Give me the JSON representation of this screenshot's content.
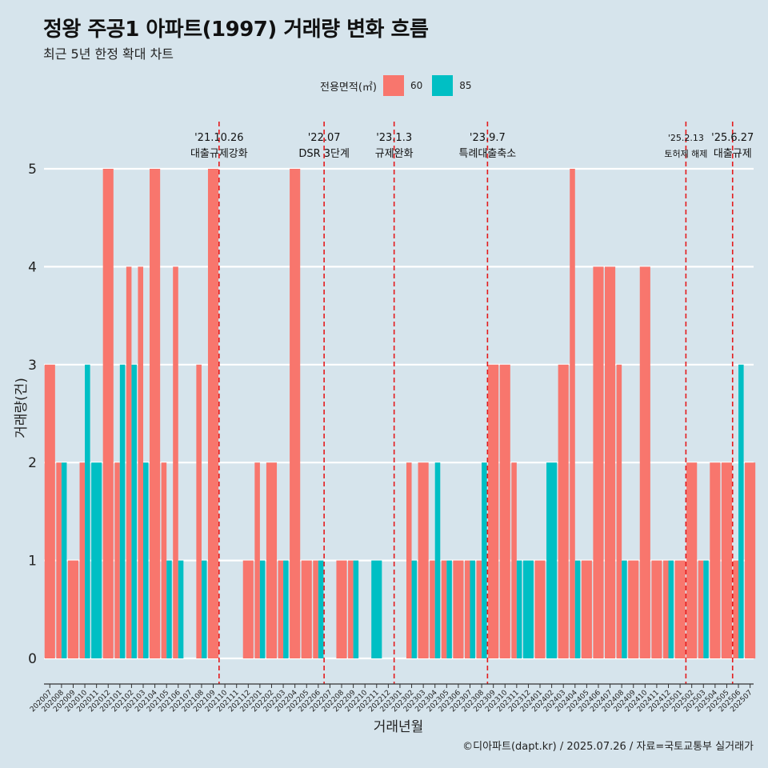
{
  "title": "정왕 주공1 아파트(1997) 거래량 변화 흐름",
  "subtitle": "최근 5년 한정 확대 차트",
  "caption": "©디아파트(dapt.kr) / 2025.07.26 / 자료=국토교통부 실거래가",
  "legend": {
    "title": "전용면적(㎡)",
    "items": [
      {
        "label": "60",
        "color": "#f8766d"
      },
      {
        "label": "85",
        "color": "#00bfc4"
      }
    ]
  },
  "chart_data": {
    "type": "bar",
    "title": "정왕 주공1 아파트(1997) 거래량 변화 흐름",
    "xlabel": "거래년월",
    "ylabel": "거래량(건)",
    "ylim": [
      0,
      5
    ],
    "yticks": [
      0,
      1,
      2,
      3,
      4,
      5
    ],
    "categories": [
      "202007",
      "202008",
      "202009",
      "202010",
      "202011",
      "202012",
      "202101",
      "202102",
      "202103",
      "202104",
      "202105",
      "202106",
      "202107",
      "202108",
      "202109",
      "202110",
      "202111",
      "202112",
      "202201",
      "202202",
      "202203",
      "202204",
      "202205",
      "202206",
      "202207",
      "202208",
      "202209",
      "202210",
      "202211",
      "202212",
      "202301",
      "202302",
      "202303",
      "202304",
      "202305",
      "202306",
      "202307",
      "202308",
      "202309",
      "202310",
      "202311",
      "202312",
      "202401",
      "202402",
      "202403",
      "202404",
      "202405",
      "202406",
      "202407",
      "202408",
      "202409",
      "202410",
      "202411",
      "202412",
      "202501",
      "202502",
      "202503",
      "202504",
      "202505",
      "202506",
      "202507"
    ],
    "series": [
      {
        "name": "60",
        "color": "#f8766d",
        "values": [
          3,
          2,
          1,
          2,
          null,
          5,
          2,
          4,
          4,
          5,
          2,
          4,
          null,
          3,
          5,
          null,
          null,
          1,
          2,
          2,
          1,
          5,
          1,
          1,
          null,
          1,
          1,
          null,
          null,
          null,
          null,
          2,
          2,
          1,
          1,
          1,
          1,
          1,
          3,
          3,
          2,
          null,
          1,
          null,
          3,
          5,
          1,
          4,
          4,
          3,
          1,
          4,
          1,
          1,
          1,
          2,
          1,
          2,
          2,
          1,
          2
        ]
      },
      {
        "name": "85",
        "color": "#00bfc4",
        "values": [
          null,
          2,
          null,
          3,
          2,
          null,
          3,
          3,
          2,
          null,
          1,
          1,
          null,
          1,
          null,
          null,
          null,
          null,
          1,
          null,
          1,
          null,
          null,
          1,
          null,
          null,
          1,
          null,
          1,
          null,
          null,
          1,
          null,
          2,
          1,
          null,
          1,
          2,
          null,
          null,
          1,
          1,
          null,
          2,
          null,
          1,
          null,
          null,
          null,
          1,
          null,
          null,
          null,
          1,
          null,
          null,
          1,
          null,
          null,
          3,
          null
        ]
      }
    ],
    "events": [
      {
        "date": "'21.10.26",
        "label": "대출규제강화",
        "month": "202110"
      },
      {
        "date": "'22.07",
        "label": "DSR 3단계",
        "month": "202207"
      },
      {
        "date": "'23.1.3",
        "label": "규제완화",
        "month": "202301"
      },
      {
        "date": "'23.9.7",
        "label": "특례대출축소",
        "month": "202309"
      },
      {
        "date": "'25.2.13",
        "label": "토허제 해제",
        "month": "202502"
      },
      {
        "date": "'25.6.27",
        "label": "대출규제",
        "month": "202506"
      }
    ]
  }
}
